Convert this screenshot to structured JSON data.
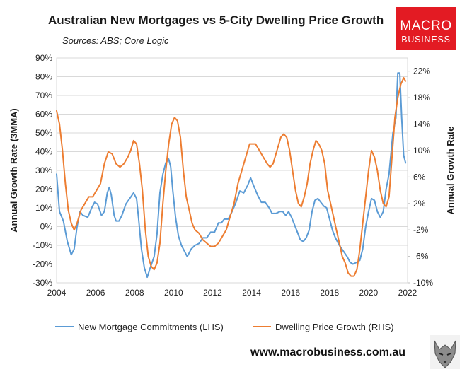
{
  "header": {
    "title": "Australian New Mortgages vs 5-City Dwelling Price Growth",
    "subtitle": "Sources: ABS; Core Logic"
  },
  "logo": {
    "line1": "MACRO",
    "line2": "BUSINESS",
    "bg_color": "#e31b23"
  },
  "footer": {
    "url": "www.macrobusiness.com.au",
    "mascot_icon": "wolf-logo-icon"
  },
  "chart_data": {
    "type": "line",
    "title": "Australian New Mortgages vs 5-City Dwelling Price Growth",
    "ylabel_left": "Annual Growth Rate (3MMA)",
    "ylabel_right": "Annual Growth Rate",
    "x_ticks": [
      "2004",
      "2006",
      "2008",
      "2010",
      "2012",
      "2014",
      "2016",
      "2018",
      "2020",
      "2022"
    ],
    "xlim": [
      2004,
      2022
    ],
    "y_left_ticks": [
      "90%",
      "80%",
      "70%",
      "60%",
      "50%",
      "40%",
      "30%",
      "20%",
      "10%",
      "0%",
      "-10%",
      "-20%",
      "-30%"
    ],
    "ylim_left": [
      -30,
      90
    ],
    "y_right_ticks": [
      "22%",
      "18%",
      "14%",
      "10%",
      "6%",
      "2%",
      "-2%",
      "-6%",
      "-10%"
    ],
    "ylim_right": [
      -10,
      24
    ],
    "grid": true,
    "legend_position": "bottom",
    "series": [
      {
        "name": "New Mortgage Commitments (LHS)",
        "axis": "left",
        "color": "#5b9bd5",
        "points": [
          [
            2004.0,
            28
          ],
          [
            2004.15,
            8
          ],
          [
            2004.35,
            3
          ],
          [
            2004.55,
            -8
          ],
          [
            2004.75,
            -15
          ],
          [
            2004.9,
            -12
          ],
          [
            2005.05,
            0
          ],
          [
            2005.2,
            8
          ],
          [
            2005.35,
            6
          ],
          [
            2005.6,
            5
          ],
          [
            2005.8,
            10
          ],
          [
            2005.95,
            13
          ],
          [
            2006.1,
            12
          ],
          [
            2006.3,
            6
          ],
          [
            2006.45,
            8
          ],
          [
            2006.6,
            18
          ],
          [
            2006.7,
            21
          ],
          [
            2006.8,
            17
          ],
          [
            2006.95,
            6
          ],
          [
            2007.05,
            3
          ],
          [
            2007.2,
            3
          ],
          [
            2007.35,
            6
          ],
          [
            2007.55,
            12
          ],
          [
            2007.75,
            15
          ],
          [
            2007.95,
            18
          ],
          [
            2008.1,
            15
          ],
          [
            2008.2,
            5
          ],
          [
            2008.35,
            -12
          ],
          [
            2008.5,
            -22
          ],
          [
            2008.65,
            -27
          ],
          [
            2008.8,
            -22
          ],
          [
            2009.0,
            -16
          ],
          [
            2009.15,
            -4
          ],
          [
            2009.3,
            18
          ],
          [
            2009.45,
            28
          ],
          [
            2009.6,
            34
          ],
          [
            2009.75,
            36
          ],
          [
            2009.85,
            32
          ],
          [
            2009.95,
            20
          ],
          [
            2010.1,
            5
          ],
          [
            2010.25,
            -5
          ],
          [
            2010.4,
            -10
          ],
          [
            2010.55,
            -13
          ],
          [
            2010.7,
            -16
          ],
          [
            2010.9,
            -12
          ],
          [
            2011.1,
            -10
          ],
          [
            2011.3,
            -9
          ],
          [
            2011.5,
            -6
          ],
          [
            2011.7,
            -6
          ],
          [
            2011.9,
            -3
          ],
          [
            2012.1,
            -3
          ],
          [
            2012.3,
            2
          ],
          [
            2012.45,
            2
          ],
          [
            2012.6,
            4
          ],
          [
            2012.8,
            4
          ],
          [
            2013.0,
            8
          ],
          [
            2013.2,
            13
          ],
          [
            2013.4,
            19
          ],
          [
            2013.6,
            18
          ],
          [
            2013.8,
            22
          ],
          [
            2013.95,
            26
          ],
          [
            2014.1,
            22
          ],
          [
            2014.3,
            17
          ],
          [
            2014.5,
            13
          ],
          [
            2014.7,
            13
          ],
          [
            2014.9,
            10
          ],
          [
            2015.05,
            7
          ],
          [
            2015.25,
            7
          ],
          [
            2015.45,
            8
          ],
          [
            2015.6,
            8
          ],
          [
            2015.75,
            6
          ],
          [
            2015.9,
            8
          ],
          [
            2016.05,
            5
          ],
          [
            2016.2,
            1
          ],
          [
            2016.35,
            -3
          ],
          [
            2016.5,
            -7
          ],
          [
            2016.65,
            -8
          ],
          [
            2016.8,
            -6
          ],
          [
            2016.95,
            -2
          ],
          [
            2017.1,
            8
          ],
          [
            2017.25,
            14
          ],
          [
            2017.4,
            15
          ],
          [
            2017.55,
            13
          ],
          [
            2017.7,
            11
          ],
          [
            2017.85,
            10
          ],
          [
            2018.0,
            4
          ],
          [
            2018.15,
            -2
          ],
          [
            2018.3,
            -6
          ],
          [
            2018.5,
            -10
          ],
          [
            2018.7,
            -13
          ],
          [
            2018.9,
            -16
          ],
          [
            2019.05,
            -19
          ],
          [
            2019.2,
            -20
          ],
          [
            2019.4,
            -19
          ],
          [
            2019.55,
            -18
          ],
          [
            2019.7,
            -12
          ],
          [
            2019.85,
            0
          ],
          [
            2020.0,
            8
          ],
          [
            2020.15,
            15
          ],
          [
            2020.3,
            14
          ],
          [
            2020.45,
            8
          ],
          [
            2020.6,
            5
          ],
          [
            2020.75,
            8
          ],
          [
            2020.9,
            20
          ],
          [
            2021.05,
            28
          ],
          [
            2021.25,
            50
          ],
          [
            2021.4,
            58
          ],
          [
            2021.5,
            82
          ],
          [
            2021.6,
            82
          ],
          [
            2021.7,
            58
          ],
          [
            2021.8,
            38
          ],
          [
            2021.9,
            34
          ]
        ]
      },
      {
        "name": "Dwelling Price Growth (RHS)",
        "axis": "right",
        "color": "#ed7d31",
        "points": [
          [
            2004.0,
            16
          ],
          [
            2004.15,
            14
          ],
          [
            2004.3,
            10
          ],
          [
            2004.45,
            5
          ],
          [
            2004.6,
            1
          ],
          [
            2004.75,
            -1
          ],
          [
            2004.9,
            -2
          ],
          [
            2005.05,
            -1
          ],
          [
            2005.25,
            1
          ],
          [
            2005.45,
            2
          ],
          [
            2005.65,
            3
          ],
          [
            2005.85,
            3
          ],
          [
            2006.05,
            4
          ],
          [
            2006.25,
            5
          ],
          [
            2006.45,
            8
          ],
          [
            2006.65,
            9.8
          ],
          [
            2006.85,
            9.5
          ],
          [
            2007.05,
            8
          ],
          [
            2007.25,
            7.5
          ],
          [
            2007.45,
            8
          ],
          [
            2007.65,
            9
          ],
          [
            2007.8,
            10
          ],
          [
            2007.95,
            11.5
          ],
          [
            2008.1,
            11
          ],
          [
            2008.25,
            8
          ],
          [
            2008.4,
            4
          ],
          [
            2008.55,
            -2
          ],
          [
            2008.7,
            -6
          ],
          [
            2008.85,
            -7.5
          ],
          [
            2009.0,
            -8
          ],
          [
            2009.15,
            -7
          ],
          [
            2009.3,
            -4
          ],
          [
            2009.45,
            2
          ],
          [
            2009.6,
            7
          ],
          [
            2009.75,
            11
          ],
          [
            2009.9,
            14
          ],
          [
            2010.05,
            15
          ],
          [
            2010.2,
            14.5
          ],
          [
            2010.35,
            12
          ],
          [
            2010.5,
            7
          ],
          [
            2010.65,
            3
          ],
          [
            2010.8,
            1
          ],
          [
            2010.95,
            -1
          ],
          [
            2011.1,
            -2
          ],
          [
            2011.3,
            -2.5
          ],
          [
            2011.5,
            -3.5
          ],
          [
            2011.7,
            -4
          ],
          [
            2011.9,
            -4.5
          ],
          [
            2012.1,
            -4.5
          ],
          [
            2012.3,
            -4
          ],
          [
            2012.5,
            -3
          ],
          [
            2012.7,
            -2
          ],
          [
            2012.9,
            0
          ],
          [
            2013.1,
            2
          ],
          [
            2013.3,
            5
          ],
          [
            2013.5,
            7
          ],
          [
            2013.7,
            9
          ],
          [
            2013.9,
            11
          ],
          [
            2014.05,
            11
          ],
          [
            2014.2,
            11
          ],
          [
            2014.4,
            10
          ],
          [
            2014.6,
            9
          ],
          [
            2014.8,
            8
          ],
          [
            2014.95,
            7.5
          ],
          [
            2015.1,
            8
          ],
          [
            2015.3,
            10
          ],
          [
            2015.5,
            12
          ],
          [
            2015.65,
            12.5
          ],
          [
            2015.8,
            12
          ],
          [
            2015.95,
            10
          ],
          [
            2016.1,
            7
          ],
          [
            2016.25,
            4
          ],
          [
            2016.4,
            2
          ],
          [
            2016.55,
            1.5
          ],
          [
            2016.7,
            3
          ],
          [
            2016.85,
            5
          ],
          [
            2017.0,
            8
          ],
          [
            2017.15,
            10
          ],
          [
            2017.3,
            11.5
          ],
          [
            2017.45,
            11
          ],
          [
            2017.6,
            10
          ],
          [
            2017.75,
            8
          ],
          [
            2017.9,
            4
          ],
          [
            2018.05,
            2
          ],
          [
            2018.2,
            0
          ],
          [
            2018.35,
            -2
          ],
          [
            2018.5,
            -4
          ],
          [
            2018.65,
            -6
          ],
          [
            2018.8,
            -7
          ],
          [
            2018.95,
            -8.5
          ],
          [
            2019.1,
            -9
          ],
          [
            2019.25,
            -9
          ],
          [
            2019.4,
            -8
          ],
          [
            2019.55,
            -5
          ],
          [
            2019.7,
            -1
          ],
          [
            2019.85,
            3
          ],
          [
            2020.0,
            7
          ],
          [
            2020.15,
            10
          ],
          [
            2020.3,
            9
          ],
          [
            2020.45,
            7
          ],
          [
            2020.6,
            4
          ],
          [
            2020.75,
            2
          ],
          [
            2020.9,
            1.5
          ],
          [
            2021.05,
            3
          ],
          [
            2021.2,
            9
          ],
          [
            2021.35,
            15
          ],
          [
            2021.5,
            18
          ],
          [
            2021.65,
            20
          ],
          [
            2021.8,
            21
          ],
          [
            2021.9,
            20.5
          ]
        ]
      }
    ]
  }
}
